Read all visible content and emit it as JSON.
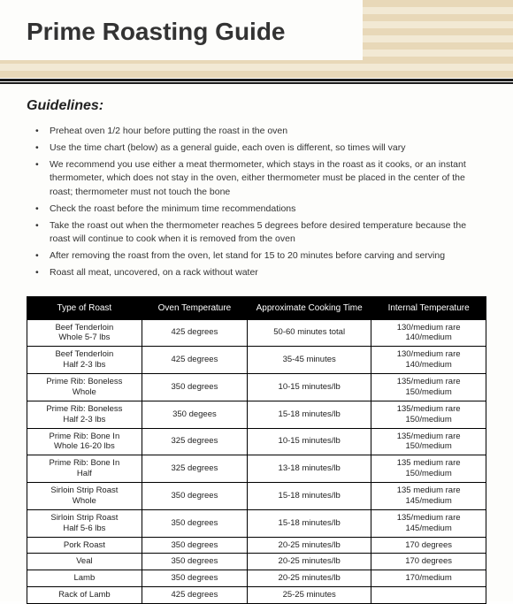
{
  "title": "Prime Roasting Guide",
  "sectionHeading": "Guidelines:",
  "guidelines": [
    "Preheat oven 1/2 hour before putting the roast in the oven",
    "Use the time chart (below) as a general guide, each oven is different, so times will vary",
    "We recommend you use either a meat thermometer, which stays in the roast as it cooks, or an instant thermometer, which does not stay in the oven, either thermometer must be placed in the center of the roast; thermometer must not touch the bone",
    "Check the roast before the minimum time recommendations",
    "Take the roast out when the thermometer reaches 5 degrees before desired temperature because the roast will continue to cook when it is removed from the oven",
    "After removing the roast from the oven, let stand for 15 to 20 minutes before carving and serving",
    "Roast all meat, uncovered, on a rack without water"
  ],
  "table": {
    "columns": [
      "Type of Roast",
      "Oven Temperature",
      "Approximate\nCooking Time",
      "Internal Temperature"
    ],
    "rows": [
      [
        "Beef Tenderloin\nWhole 5-7 lbs",
        "425 degrees",
        "50-60 minutes total",
        "130/medium rare\n140/medium"
      ],
      [
        "Beef Tenderloin\nHalf 2-3 lbs",
        "425 degrees",
        "35-45 minutes",
        "130/medium rare\n140/medium"
      ],
      [
        "Prime Rib: Boneless\nWhole",
        "350 degrees",
        "10-15 minutes/lb",
        "135/medium rare\n150/medium"
      ],
      [
        "Prime Rib: Boneless\nHalf 2-3 lbs",
        "350 degees",
        "15-18 minutes/lb",
        "135/medium rare\n150/medium"
      ],
      [
        "Prime Rib: Bone In\nWhole 16-20 lbs",
        "325 degrees",
        "10-15 minutes/lb",
        "135/medium rare\n150/medium"
      ],
      [
        "Prime Rib: Bone In\nHalf",
        "325 degrees",
        "13-18 minutes/lb",
        "135 medium rare\n150/medium"
      ],
      [
        "Sirloin Strip Roast\nWhole",
        "350 degrees",
        "15-18 minutes/lb",
        "135 medium rare\n145/medium"
      ],
      [
        "Sirloin Strip Roast\nHalf 5-6 lbs",
        "350 degrees",
        "15-18 minutes/lb",
        "135/medium rare\n145/medium"
      ],
      [
        "Pork Roast",
        "350 degrees",
        "20-25 minutes/lb",
        "170 degrees"
      ],
      [
        "Veal",
        "350 degrees",
        "20-25 minutes/lb",
        "170 degrees"
      ],
      [
        "Lamb",
        "350 degrees",
        "20-25 minutes/lb",
        "170/medium"
      ],
      [
        "Rack of Lamb",
        "425 degrees",
        "25-25 minutes",
        ""
      ]
    ]
  }
}
